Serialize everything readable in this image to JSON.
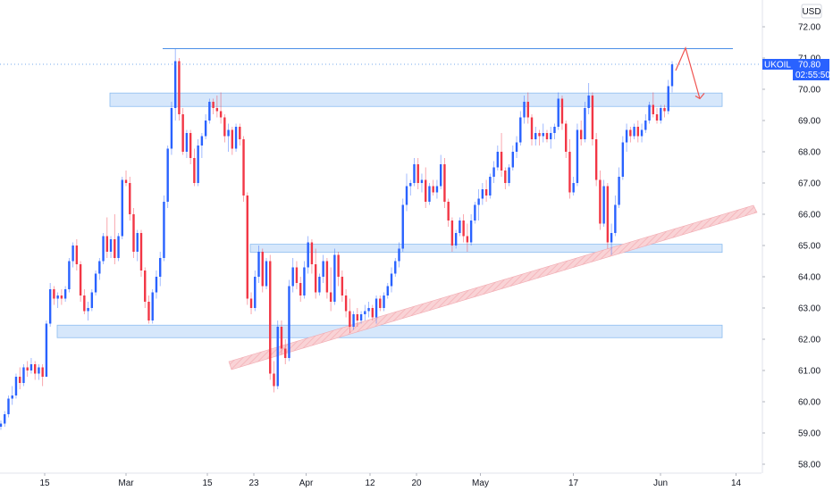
{
  "chart_data": {
    "type": "candlestick",
    "currency_label": "USD",
    "symbol": "UKOIL",
    "last_price": "70.80",
    "countdown": "02:55:50",
    "ylim": [
      57.8,
      72.4
    ],
    "y_ticks": [
      "58.00",
      "59.00",
      "60.00",
      "61.00",
      "62.00",
      "63.00",
      "64.00",
      "65.00",
      "66.00",
      "67.00",
      "68.00",
      "69.00",
      "70.00",
      "71.00",
      "72.00"
    ],
    "x_ticks": [
      {
        "label": "15",
        "day": 0
      },
      {
        "label": "Mar",
        "day": 14
      },
      {
        "label": "15",
        "day": 28
      },
      {
        "label": "23",
        "day": 36
      },
      {
        "label": "Apr",
        "day": 45
      },
      {
        "label": "12",
        "day": 56
      },
      {
        "label": "20",
        "day": 64
      },
      {
        "label": "May",
        "day": 75
      },
      {
        "label": "17",
        "day": 91
      },
      {
        "label": "Jun",
        "day": 106
      },
      {
        "label": "14",
        "day": 119
      }
    ],
    "candles": [
      [
        59.2,
        59.4,
        59.1,
        59.3
      ],
      [
        59.3,
        59.7,
        59.2,
        59.6
      ],
      [
        59.6,
        60.2,
        59.5,
        60.1
      ],
      [
        60.1,
        60.5,
        59.9,
        60.2
      ],
      [
        60.2,
        60.9,
        60.1,
        60.8
      ],
      [
        60.8,
        61.1,
        60.4,
        60.6
      ],
      [
        60.6,
        61.2,
        60.5,
        61.1
      ],
      [
        61.1,
        61.3,
        60.8,
        61.0
      ],
      [
        61.0,
        61.4,
        60.9,
        61.2
      ],
      [
        61.2,
        61.3,
        60.7,
        60.9
      ],
      [
        60.9,
        61.2,
        60.7,
        61.1
      ],
      [
        61.1,
        61.2,
        60.5,
        60.8
      ],
      [
        60.8,
        62.6,
        60.8,
        62.5
      ],
      [
        62.5,
        63.8,
        62.4,
        63.6
      ],
      [
        63.6,
        63.7,
        63.1,
        63.3
      ],
      [
        63.3,
        63.5,
        63.0,
        63.4
      ],
      [
        63.4,
        63.6,
        63.1,
        63.3
      ],
      [
        63.3,
        63.7,
        63.2,
        63.6
      ],
      [
        63.6,
        64.6,
        63.5,
        64.5
      ],
      [
        64.5,
        65.1,
        64.3,
        65.0
      ],
      [
        65.0,
        65.2,
        64.2,
        64.4
      ],
      [
        64.4,
        64.5,
        63.2,
        63.4
      ],
      [
        63.4,
        63.6,
        62.8,
        62.9
      ],
      [
        62.9,
        63.2,
        62.6,
        63.0
      ],
      [
        63.0,
        63.6,
        62.9,
        63.5
      ],
      [
        63.5,
        64.2,
        63.4,
        64.1
      ],
      [
        64.1,
        64.6,
        63.9,
        64.5
      ],
      [
        64.5,
        65.4,
        64.4,
        65.3
      ],
      [
        65.3,
        65.9,
        64.6,
        64.8
      ],
      [
        64.8,
        65.3,
        64.6,
        65.2
      ],
      [
        65.2,
        66.0,
        64.4,
        64.6
      ],
      [
        64.6,
        65.4,
        64.5,
        65.3
      ],
      [
        65.3,
        67.2,
        65.2,
        67.1
      ],
      [
        67.1,
        67.4,
        66.9,
        67.0
      ],
      [
        67.0,
        67.2,
        65.8,
        66.0
      ],
      [
        66.0,
        66.2,
        64.6,
        64.8
      ],
      [
        64.8,
        65.5,
        64.5,
        65.4
      ],
      [
        65.4,
        65.5,
        64.0,
        64.2
      ],
      [
        64.2,
        64.3,
        63.0,
        63.2
      ],
      [
        63.2,
        63.4,
        62.5,
        62.6
      ],
      [
        62.6,
        63.6,
        62.5,
        63.5
      ],
      [
        63.5,
        64.2,
        63.3,
        64.0
      ],
      [
        64.0,
        64.8,
        63.7,
        64.6
      ],
      [
        64.6,
        66.6,
        64.5,
        66.4
      ],
      [
        66.4,
        68.2,
        66.2,
        68.1
      ],
      [
        68.1,
        69.6,
        67.9,
        69.4
      ],
      [
        69.4,
        71.3,
        69.0,
        70.9
      ],
      [
        70.9,
        71.0,
        69.0,
        69.2
      ],
      [
        69.2,
        69.4,
        67.9,
        68.0
      ],
      [
        68.0,
        68.7,
        67.8,
        68.6
      ],
      [
        68.6,
        68.7,
        67.6,
        67.8
      ],
      [
        67.8,
        68.1,
        66.9,
        67.0
      ],
      [
        67.0,
        68.4,
        66.9,
        68.2
      ],
      [
        68.2,
        68.6,
        67.8,
        68.5
      ],
      [
        68.5,
        69.2,
        68.4,
        69.0
      ],
      [
        69.0,
        69.7,
        68.9,
        69.6
      ],
      [
        69.6,
        69.7,
        69.2,
        69.4
      ],
      [
        69.4,
        69.8,
        69.1,
        69.3
      ],
      [
        69.3,
        69.9,
        68.9,
        69.1
      ],
      [
        69.1,
        69.2,
        68.3,
        68.5
      ],
      [
        68.5,
        68.9,
        68.0,
        68.7
      ],
      [
        68.7,
        68.8,
        67.9,
        68.1
      ],
      [
        68.1,
        68.9,
        68.0,
        68.8
      ],
      [
        68.8,
        68.9,
        68.2,
        68.4
      ],
      [
        68.4,
        68.5,
        66.4,
        66.6
      ],
      [
        66.6,
        66.7,
        63.1,
        63.3
      ],
      [
        63.3,
        63.5,
        62.8,
        63.0
      ],
      [
        63.0,
        64.2,
        62.9,
        64.0
      ],
      [
        64.0,
        65.0,
        63.8,
        64.8
      ],
      [
        64.8,
        64.9,
        63.5,
        63.7
      ],
      [
        63.7,
        64.6,
        63.6,
        64.5
      ],
      [
        64.5,
        64.7,
        60.7,
        60.9
      ],
      [
        60.9,
        61.3,
        60.3,
        60.5
      ],
      [
        60.5,
        62.6,
        60.4,
        62.4
      ],
      [
        62.4,
        62.6,
        61.5,
        61.7
      ],
      [
        61.7,
        62.0,
        61.2,
        61.4
      ],
      [
        61.4,
        63.9,
        61.3,
        63.7
      ],
      [
        63.7,
        64.6,
        63.5,
        64.3
      ],
      [
        64.3,
        64.5,
        63.6,
        63.8
      ],
      [
        63.8,
        64.0,
        63.2,
        63.4
      ],
      [
        63.4,
        64.5,
        63.3,
        64.3
      ],
      [
        64.3,
        65.3,
        64.1,
        65.1
      ],
      [
        65.1,
        65.2,
        64.1,
        64.4
      ],
      [
        64.4,
        64.9,
        63.3,
        63.5
      ],
      [
        63.5,
        64.1,
        63.4,
        64.0
      ],
      [
        64.0,
        64.7,
        63.8,
        64.5
      ],
      [
        64.5,
        64.6,
        63.3,
        63.5
      ],
      [
        63.5,
        64.3,
        62.9,
        63.2
      ],
      [
        63.2,
        64.9,
        63.1,
        64.7
      ],
      [
        64.7,
        64.8,
        63.7,
        64.0
      ],
      [
        64.0,
        64.2,
        63.2,
        63.4
      ],
      [
        63.4,
        63.6,
        62.7,
        62.9
      ],
      [
        62.9,
        63.3,
        62.2,
        62.4
      ],
      [
        62.4,
        62.9,
        62.3,
        62.8
      ],
      [
        62.8,
        63.0,
        62.4,
        62.6
      ],
      [
        62.6,
        62.9,
        62.5,
        62.8
      ],
      [
        62.8,
        63.1,
        62.6,
        62.9
      ],
      [
        62.9,
        63.2,
        62.7,
        63.0
      ],
      [
        63.0,
        63.1,
        62.6,
        62.7
      ],
      [
        62.7,
        63.4,
        62.5,
        63.3
      ],
      [
        63.3,
        63.4,
        62.9,
        63.0
      ],
      [
        63.0,
        63.5,
        62.9,
        63.4
      ],
      [
        63.4,
        63.8,
        63.3,
        63.7
      ],
      [
        63.7,
        64.3,
        63.5,
        64.1
      ],
      [
        64.1,
        64.6,
        64.0,
        64.5
      ],
      [
        64.5,
        65.1,
        64.3,
        64.9
      ],
      [
        64.9,
        66.5,
        64.8,
        66.3
      ],
      [
        66.3,
        67.3,
        66.1,
        66.9
      ],
      [
        66.9,
        67.1,
        66.6,
        67.0
      ],
      [
        67.0,
        67.8,
        66.9,
        67.6
      ],
      [
        67.6,
        67.8,
        66.8,
        67.0
      ],
      [
        67.0,
        67.3,
        66.7,
        67.1
      ],
      [
        67.1,
        67.5,
        66.2,
        66.4
      ],
      [
        66.4,
        67.0,
        66.3,
        66.9
      ],
      [
        66.9,
        67.1,
        66.6,
        66.7
      ],
      [
        66.7,
        67.1,
        66.5,
        66.9
      ],
      [
        66.9,
        67.9,
        66.8,
        67.6
      ],
      [
        67.6,
        67.8,
        66.2,
        66.4
      ],
      [
        66.4,
        66.5,
        65.6,
        65.8
      ],
      [
        65.8,
        65.9,
        64.8,
        65.0
      ],
      [
        65.0,
        65.5,
        64.9,
        65.4
      ],
      [
        65.4,
        65.9,
        65.3,
        65.8
      ],
      [
        65.8,
        66.0,
        65.1,
        65.3
      ],
      [
        65.3,
        65.7,
        64.8,
        65.1
      ],
      [
        65.1,
        66.0,
        65.0,
        65.8
      ],
      [
        65.8,
        66.4,
        65.7,
        66.3
      ],
      [
        66.3,
        66.8,
        65.8,
        66.5
      ],
      [
        66.5,
        67.0,
        66.3,
        66.8
      ],
      [
        66.8,
        67.1,
        66.4,
        66.6
      ],
      [
        66.6,
        67.3,
        66.5,
        67.2
      ],
      [
        67.2,
        67.7,
        67.0,
        67.5
      ],
      [
        67.5,
        68.2,
        67.4,
        68.0
      ],
      [
        68.0,
        68.6,
        67.2,
        67.4
      ],
      [
        67.4,
        67.5,
        66.8,
        67.0
      ],
      [
        67.0,
        67.6,
        66.9,
        67.5
      ],
      [
        67.5,
        68.2,
        67.4,
        68.0
      ],
      [
        68.0,
        68.5,
        67.8,
        68.3
      ],
      [
        68.3,
        69.3,
        68.2,
        69.1
      ],
      [
        69.1,
        69.8,
        68.9,
        69.6
      ],
      [
        69.6,
        69.9,
        68.9,
        69.1
      ],
      [
        69.1,
        69.2,
        68.2,
        68.4
      ],
      [
        68.4,
        68.8,
        68.2,
        68.6
      ],
      [
        68.6,
        68.7,
        68.2,
        68.5
      ],
      [
        68.5,
        68.9,
        68.3,
        68.6
      ],
      [
        68.6,
        68.7,
        68.3,
        68.4
      ],
      [
        68.4,
        68.8,
        68.1,
        68.6
      ],
      [
        68.6,
        68.9,
        68.4,
        68.8
      ],
      [
        68.8,
        69.9,
        68.7,
        69.7
      ],
      [
        69.7,
        69.8,
        68.7,
        68.9
      ],
      [
        68.9,
        69.0,
        67.8,
        68.0
      ],
      [
        68.0,
        68.4,
        66.5,
        66.7
      ],
      [
        66.7,
        67.2,
        66.6,
        67.0
      ],
      [
        67.0,
        68.9,
        66.9,
        68.7
      ],
      [
        68.7,
        69.0,
        68.2,
        68.4
      ],
      [
        68.4,
        69.6,
        68.3,
        69.4
      ],
      [
        69.4,
        70.2,
        69.2,
        69.8
      ],
      [
        69.8,
        69.9,
        68.2,
        68.4
      ],
      [
        68.4,
        68.6,
        66.9,
        67.1
      ],
      [
        67.1,
        67.4,
        65.5,
        65.7
      ],
      [
        65.7,
        67.1,
        65.6,
        66.9
      ],
      [
        66.9,
        67.0,
        64.9,
        65.1
      ],
      [
        65.1,
        65.7,
        64.7,
        65.4
      ],
      [
        65.4,
        66.6,
        65.3,
        66.3
      ],
      [
        66.3,
        67.5,
        66.2,
        67.2
      ],
      [
        67.2,
        68.5,
        67.1,
        68.3
      ],
      [
        68.3,
        68.9,
        68.0,
        68.7
      ],
      [
        68.7,
        68.8,
        68.3,
        68.5
      ],
      [
        68.5,
        68.9,
        68.4,
        68.8
      ],
      [
        68.8,
        69.0,
        68.3,
        68.5
      ],
      [
        68.5,
        68.9,
        68.3,
        68.7
      ],
      [
        68.7,
        69.2,
        68.6,
        69.0
      ],
      [
        69.0,
        69.6,
        68.9,
        69.5
      ],
      [
        69.5,
        69.9,
        69.1,
        69.2
      ],
      [
        69.2,
        69.4,
        68.9,
        69.0
      ],
      [
        69.0,
        69.5,
        68.9,
        69.4
      ],
      [
        69.4,
        69.5,
        69.1,
        69.3
      ],
      [
        69.3,
        70.3,
        69.2,
        70.1
      ],
      [
        70.1,
        70.9,
        69.9,
        70.8
      ]
    ]
  }
}
